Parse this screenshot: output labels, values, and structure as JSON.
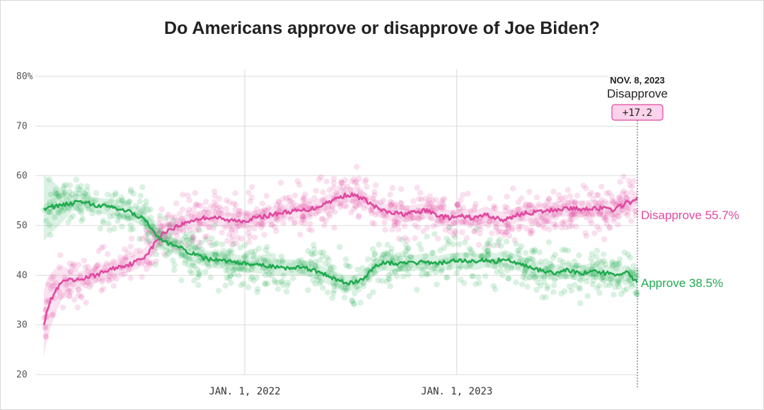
{
  "chart_data": {
    "type": "line",
    "title": "Do Americans approve or disapprove of Joe Biden?",
    "ylim": [
      20,
      80
    ],
    "y_ticks": [
      {
        "value": 80,
        "label": "80%"
      },
      {
        "value": 70,
        "label": "70"
      },
      {
        "value": 60,
        "label": "60"
      },
      {
        "value": 50,
        "label": "50"
      },
      {
        "value": 40,
        "label": "40"
      },
      {
        "value": 30,
        "label": "30"
      },
      {
        "value": 20,
        "label": "20"
      }
    ],
    "x_range": [
      "2021-01-20",
      "2023-11-08"
    ],
    "x_ticks": [
      {
        "value": "2022-01-01",
        "label": "JAN. 1, 2022"
      },
      {
        "value": "2023-01-01",
        "label": "JAN. 1, 2023"
      }
    ],
    "series": [
      {
        "name": "Disapprove",
        "color": "#e0489f",
        "end_label": "Disapprove 55.7%",
        "points": [
          [
            "2021-01-20",
            30
          ],
          [
            "2021-01-25",
            33
          ],
          [
            "2021-02-01",
            35
          ],
          [
            "2021-02-10",
            37
          ],
          [
            "2021-02-20",
            38.5
          ],
          [
            "2021-03-01",
            39
          ],
          [
            "2021-03-15",
            38.8
          ],
          [
            "2021-04-01",
            39.5
          ],
          [
            "2021-04-20",
            40
          ],
          [
            "2021-05-10",
            41
          ],
          [
            "2021-06-01",
            41.8
          ],
          [
            "2021-06-20",
            42.3
          ],
          [
            "2021-07-10",
            43.5
          ],
          [
            "2021-07-25",
            45.5
          ],
          [
            "2021-08-05",
            47.5
          ],
          [
            "2021-08-20",
            49
          ],
          [
            "2021-09-10",
            50
          ],
          [
            "2021-10-01",
            51
          ],
          [
            "2021-10-20",
            51.5
          ],
          [
            "2021-11-10",
            51.7
          ],
          [
            "2021-12-01",
            51
          ],
          [
            "2022-01-01",
            51
          ],
          [
            "2022-01-20",
            51.5
          ],
          [
            "2022-02-10",
            52
          ],
          [
            "2022-03-01",
            52.5
          ],
          [
            "2022-03-20",
            52.8
          ],
          [
            "2022-04-10",
            53
          ],
          [
            "2022-05-01",
            53.5
          ],
          [
            "2022-05-20",
            54.5
          ],
          [
            "2022-06-10",
            55.5
          ],
          [
            "2022-06-25",
            56.2
          ],
          [
            "2022-07-10",
            56
          ],
          [
            "2022-07-25",
            55.3
          ],
          [
            "2022-08-10",
            54
          ],
          [
            "2022-08-25",
            53
          ],
          [
            "2022-09-10",
            52.5
          ],
          [
            "2022-10-01",
            52.3
          ],
          [
            "2022-10-20",
            52.6
          ],
          [
            "2022-11-10",
            53
          ],
          [
            "2022-12-01",
            52
          ],
          [
            "2022-12-20",
            51.5
          ],
          [
            "2023-01-10",
            51.8
          ],
          [
            "2023-02-01",
            51.5
          ],
          [
            "2023-02-20",
            52.2
          ],
          [
            "2023-03-10",
            51.5
          ],
          [
            "2023-03-25",
            51
          ],
          [
            "2023-04-15",
            52.2
          ],
          [
            "2023-05-10",
            52.6
          ],
          [
            "2023-06-01",
            52.8
          ],
          [
            "2023-06-20",
            53.2
          ],
          [
            "2023-07-10",
            53.5
          ],
          [
            "2023-08-01",
            53.3
          ],
          [
            "2023-08-20",
            53.5
          ],
          [
            "2023-09-10",
            53.4
          ],
          [
            "2023-09-25",
            53.2
          ],
          [
            "2023-10-10",
            53.8
          ],
          [
            "2023-10-20",
            54.8
          ],
          [
            "2023-10-28",
            54.2
          ],
          [
            "2023-11-08",
            55.7
          ]
        ]
      },
      {
        "name": "Approve",
        "color": "#20aa4f",
        "end_label": "Approve 38.5%",
        "points": [
          [
            "2021-01-20",
            53.5
          ],
          [
            "2021-02-01",
            53.8
          ],
          [
            "2021-02-20",
            54
          ],
          [
            "2021-03-10",
            54.5
          ],
          [
            "2021-04-01",
            54.8
          ],
          [
            "2021-04-20",
            54
          ],
          [
            "2021-05-10",
            53.8
          ],
          [
            "2021-06-01",
            53.5
          ],
          [
            "2021-06-20",
            52.5
          ],
          [
            "2021-07-10",
            51.5
          ],
          [
            "2021-07-25",
            49.5
          ],
          [
            "2021-08-05",
            47.5
          ],
          [
            "2021-08-20",
            46.5
          ],
          [
            "2021-09-10",
            45.5
          ],
          [
            "2021-10-01",
            44.5
          ],
          [
            "2021-10-20",
            43.5
          ],
          [
            "2021-11-10",
            43
          ],
          [
            "2021-12-01",
            42.8
          ],
          [
            "2022-01-01",
            42.3
          ],
          [
            "2022-01-20",
            42
          ],
          [
            "2022-02-10",
            41.8
          ],
          [
            "2022-03-01",
            41.5
          ],
          [
            "2022-03-20",
            41.6
          ],
          [
            "2022-04-10",
            41.5
          ],
          [
            "2022-05-01",
            41
          ],
          [
            "2022-05-20",
            40
          ],
          [
            "2022-06-10",
            39
          ],
          [
            "2022-06-25",
            38.3
          ],
          [
            "2022-07-10",
            38.5
          ],
          [
            "2022-07-25",
            39.5
          ],
          [
            "2022-08-10",
            41.5
          ],
          [
            "2022-08-25",
            42.5
          ],
          [
            "2022-09-10",
            42.5
          ],
          [
            "2022-10-01",
            42.3
          ],
          [
            "2022-10-20",
            42.5
          ],
          [
            "2022-11-10",
            42.8
          ],
          [
            "2022-12-01",
            42.3
          ],
          [
            "2022-12-20",
            42.8
          ],
          [
            "2023-01-10",
            43
          ],
          [
            "2023-02-01",
            42.6
          ],
          [
            "2023-02-20",
            43.2
          ],
          [
            "2023-03-10",
            42.8
          ],
          [
            "2023-03-25",
            43.5
          ],
          [
            "2023-04-15",
            42.5
          ],
          [
            "2023-05-10",
            41.5
          ],
          [
            "2023-06-01",
            40.8
          ],
          [
            "2023-06-20",
            40.5
          ],
          [
            "2023-07-10",
            41
          ],
          [
            "2023-08-01",
            40.3
          ],
          [
            "2023-08-20",
            40.8
          ],
          [
            "2023-09-10",
            40.5
          ],
          [
            "2023-09-25",
            40.3
          ],
          [
            "2023-10-10",
            40.2
          ],
          [
            "2023-10-20",
            40.5
          ],
          [
            "2023-10-28",
            39.8
          ],
          [
            "2023-11-08",
            38.5
          ]
        ]
      }
    ],
    "annotation": {
      "date": "NOV. 8, 2023",
      "label": "Disapprove",
      "value": "+17.2",
      "x": "2023-11-08",
      "fill": "#fbd3ea",
      "stroke": "#e0489f"
    },
    "grid": true
  }
}
